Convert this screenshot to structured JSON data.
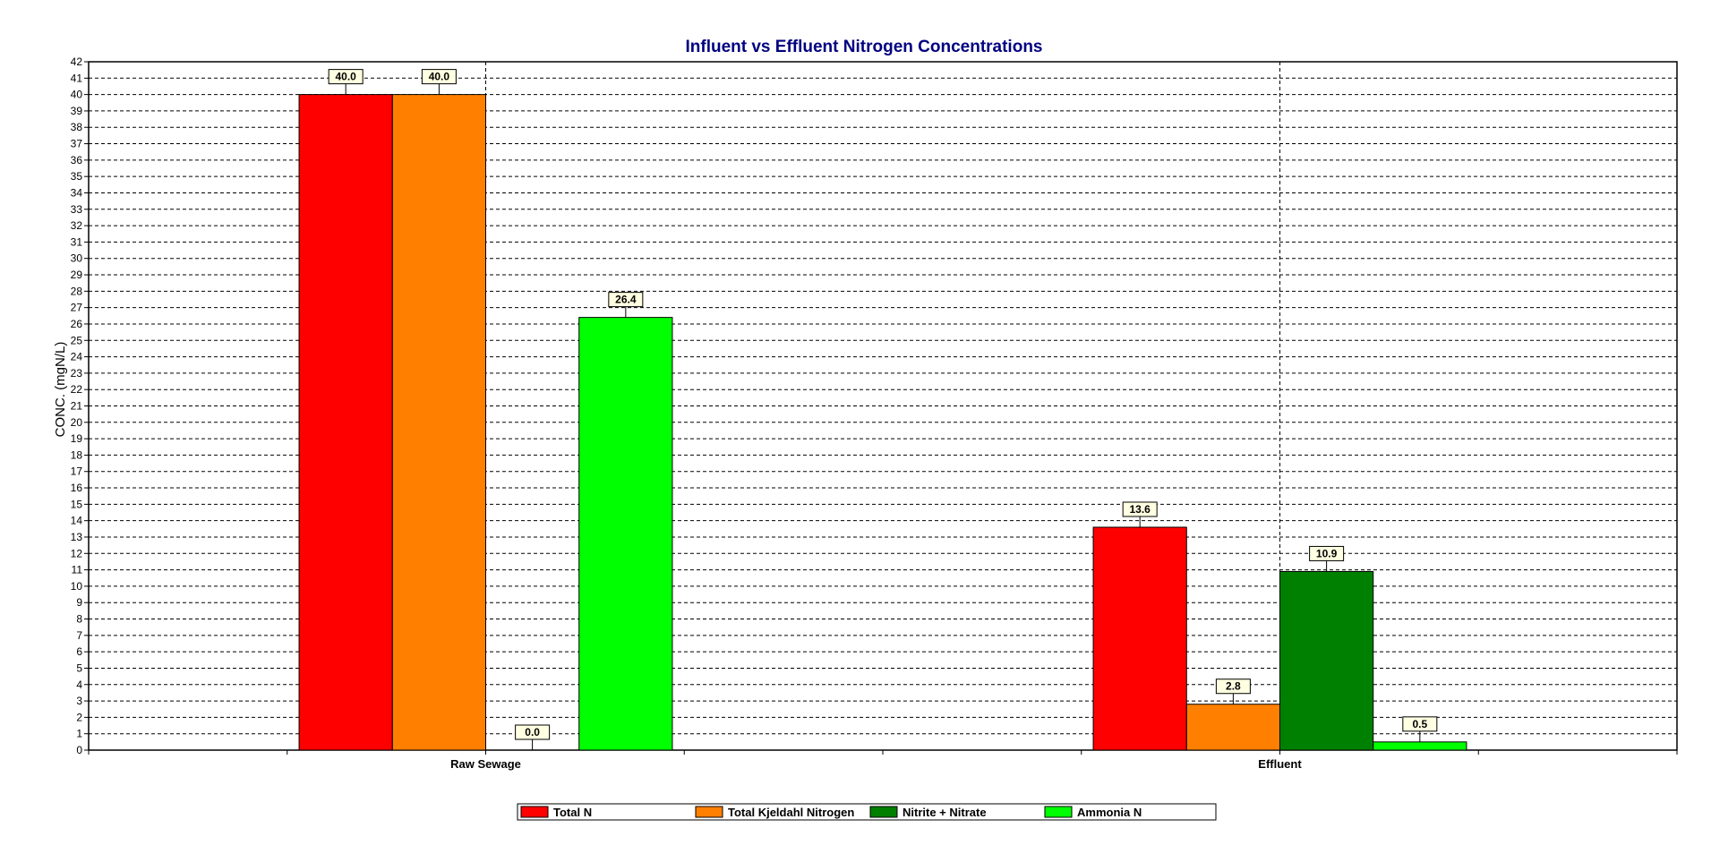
{
  "chart_data": {
    "type": "bar",
    "title": "Influent vs Effluent Nitrogen Concentrations",
    "ylabel": "CONC. (mgN/L)",
    "xlabel": "",
    "ylim": [
      0,
      42
    ],
    "ytick_step": 1,
    "grid": true,
    "legend_position": "bottom",
    "categories": [
      "Raw Sewage",
      "Effluent"
    ],
    "series": [
      {
        "name": "Total N",
        "color": "#ff0000",
        "values": [
          40.0,
          13.6
        ]
      },
      {
        "name": "Total Kjeldahl Nitrogen",
        "color": "#ff8000",
        "values": [
          40.0,
          2.8
        ]
      },
      {
        "name": "Nitrite + Nitrate",
        "color": "#008000",
        "values": [
          0.0,
          10.9
        ]
      },
      {
        "name": "Ammonia N",
        "color": "#00ff00",
        "values": [
          26.4,
          0.5
        ]
      }
    ],
    "data_labels": [
      [
        "40.0",
        "13.6"
      ],
      [
        "40.0",
        "2.8"
      ],
      [
        "0.0",
        "10.9"
      ],
      [
        "26.4",
        "0.5"
      ]
    ],
    "title_color": "#000080"
  }
}
